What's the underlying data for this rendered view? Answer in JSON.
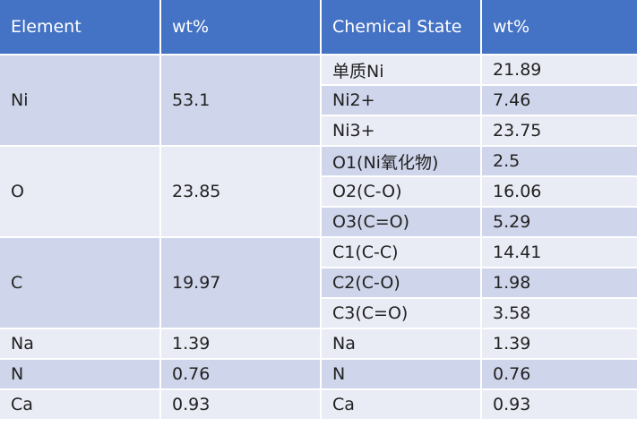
{
  "table": {
    "header": [
      "Element",
      "wt%",
      "Chemical State",
      "wt%"
    ],
    "groups": [
      {
        "element": "Ni",
        "wt": "53.1",
        "states": [
          [
            "单质Ni",
            "21.89"
          ],
          [
            "Ni2+",
            "7.46"
          ],
          [
            "Ni3+",
            "23.75"
          ]
        ]
      },
      {
        "element": "O",
        "wt": "23.85",
        "states": [
          [
            "O1(Ni氧化物)",
            "2.5"
          ],
          [
            "O2(C-O)",
            "16.06"
          ],
          [
            "O3(C=O)",
            "5.29"
          ]
        ]
      },
      {
        "element": "C",
        "wt": "19.97",
        "states": [
          [
            "C1(C-C)",
            "14.41"
          ],
          [
            "C2(C-O)",
            "1.98"
          ],
          [
            "C3(C=O)",
            "3.58"
          ]
        ]
      },
      {
        "element": "Na",
        "wt": "1.39",
        "states": [
          [
            "Na",
            "1.39"
          ]
        ]
      },
      {
        "element": "N",
        "wt": "0.76",
        "states": [
          [
            "N",
            "0.76"
          ]
        ]
      },
      {
        "element": "Ca",
        "wt": "0.93",
        "states": [
          [
            "Ca",
            "0.93"
          ]
        ]
      }
    ]
  }
}
